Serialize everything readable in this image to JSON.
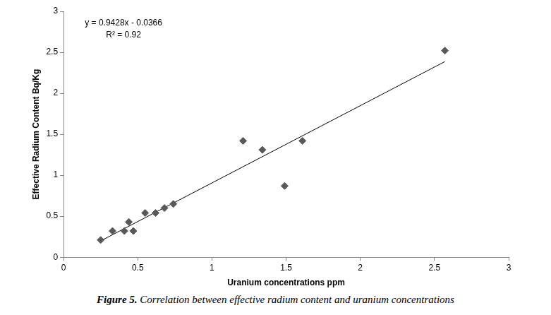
{
  "chart_data": {
    "type": "scatter",
    "x_label": "Uranium concentrations ppm",
    "y_label": "Effective Radium Content Bq/Kg",
    "caption_label": "Figure 5.",
    "caption": "Correlation between effective radium content and uranium concentrations",
    "x": [
      0.25,
      0.33,
      0.41,
      0.44,
      0.47,
      0.55,
      0.62,
      0.68,
      0.74,
      1.21,
      1.34,
      1.49,
      1.61,
      2.57
    ],
    "values": [
      0.21,
      0.32,
      0.32,
      0.43,
      0.32,
      0.54,
      0.54,
      0.6,
      0.65,
      1.42,
      1.31,
      0.87,
      1.42,
      2.52
    ],
    "color": "#595959",
    "marker": "diamond",
    "trendline": {
      "slope": 0.9428,
      "intercept": -0.0366,
      "color": "#000000",
      "equation": "y = 0.9428x - 0.0366",
      "r_squared": "R² = 0.92"
    },
    "xlim": [
      0,
      3
    ],
    "xticks": [
      0,
      0.5,
      1,
      1.5,
      2,
      2.5,
      3
    ],
    "ylim": [
      0,
      3
    ],
    "yticks": [
      0,
      0.5,
      1,
      1.5,
      2,
      2.5,
      3
    ],
    "grid": false
  }
}
